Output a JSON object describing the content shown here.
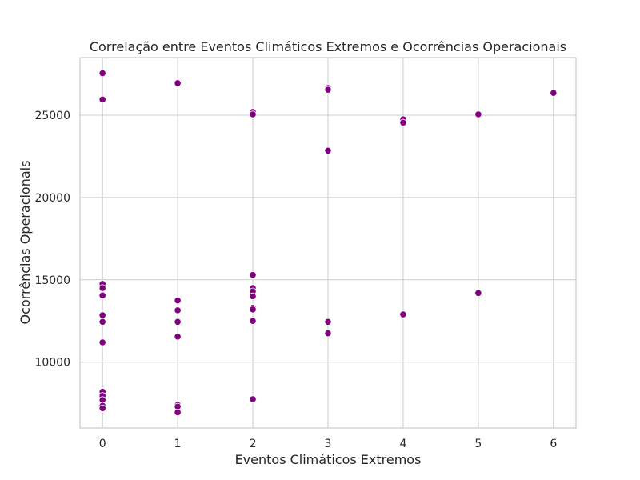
{
  "chart_data": {
    "type": "scatter",
    "title": "Correlação entre Eventos Climáticos Extremos e Ocorrências Operacionais",
    "xlabel": "Eventos Climáticos Extremos",
    "ylabel": "Ocorrências Operacionais",
    "xlim": [
      -0.3,
      6.3
    ],
    "ylim": [
      6000,
      28500
    ],
    "x_ticks": [
      0,
      1,
      2,
      3,
      4,
      5,
      6
    ],
    "y_ticks": [
      10000,
      15000,
      20000,
      25000
    ],
    "grid": true,
    "point_color": "#800080",
    "series": [
      {
        "points": [
          {
            "x": 0,
            "y": 27550
          },
          {
            "x": 0,
            "y": 25950
          },
          {
            "x": 0,
            "y": 14750
          },
          {
            "x": 0,
            "y": 14500
          },
          {
            "x": 0,
            "y": 14050
          },
          {
            "x": 0,
            "y": 12850
          },
          {
            "x": 0,
            "y": 12450
          },
          {
            "x": 0,
            "y": 11200
          },
          {
            "x": 0,
            "y": 8200
          },
          {
            "x": 0,
            "y": 7950
          },
          {
            "x": 0,
            "y": 7700
          },
          {
            "x": 0,
            "y": 7350
          },
          {
            "x": 0,
            "y": 7200
          },
          {
            "x": 1,
            "y": 26950
          },
          {
            "x": 1,
            "y": 13750
          },
          {
            "x": 1,
            "y": 13150
          },
          {
            "x": 1,
            "y": 12450
          },
          {
            "x": 1,
            "y": 11550
          },
          {
            "x": 1,
            "y": 7400
          },
          {
            "x": 1,
            "y": 7300
          },
          {
            "x": 1,
            "y": 6950
          },
          {
            "x": 2,
            "y": 25200
          },
          {
            "x": 2,
            "y": 25050
          },
          {
            "x": 2,
            "y": 15300
          },
          {
            "x": 2,
            "y": 14500
          },
          {
            "x": 2,
            "y": 14300
          },
          {
            "x": 2,
            "y": 14000
          },
          {
            "x": 2,
            "y": 13300
          },
          {
            "x": 2,
            "y": 13200
          },
          {
            "x": 2,
            "y": 12500
          },
          {
            "x": 2,
            "y": 7750
          },
          {
            "x": 3,
            "y": 26650
          },
          {
            "x": 3,
            "y": 26550
          },
          {
            "x": 3,
            "y": 22850
          },
          {
            "x": 3,
            "y": 12450
          },
          {
            "x": 3,
            "y": 11750
          },
          {
            "x": 4,
            "y": 24750
          },
          {
            "x": 4,
            "y": 24550
          },
          {
            "x": 4,
            "y": 12900
          },
          {
            "x": 5,
            "y": 25050
          },
          {
            "x": 5,
            "y": 14200
          },
          {
            "x": 6,
            "y": 26350
          }
        ]
      }
    ]
  }
}
